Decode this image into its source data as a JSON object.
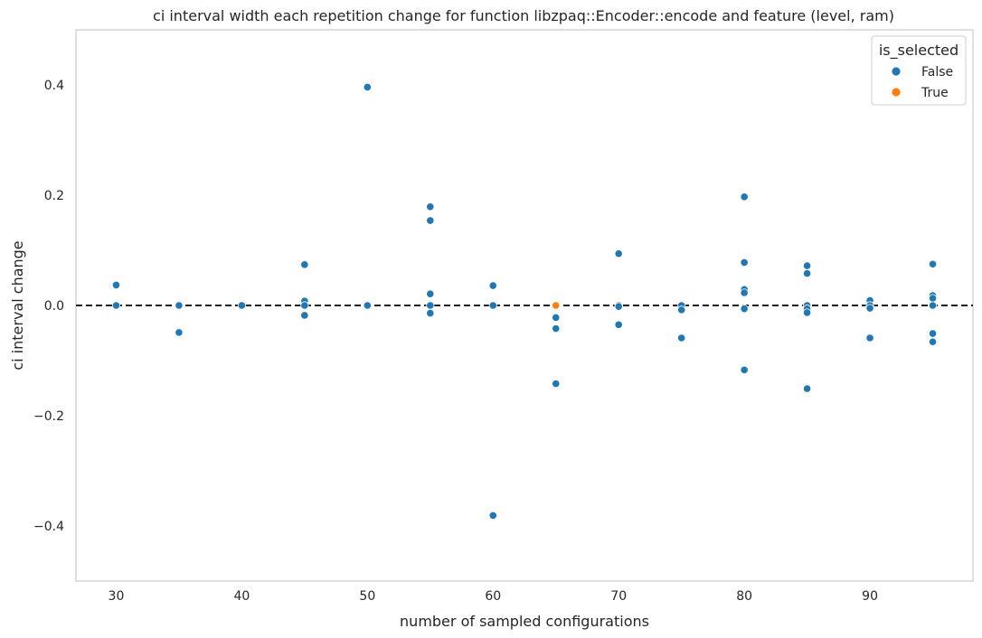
{
  "chart_data": {
    "type": "scatter",
    "title": "ci interval width each repetition change for function libzpaq::Encoder::encode and feature (level, ram)",
    "xlabel": "number of sampled configurations",
    "ylabel": "ci interval change",
    "xlim": [
      26.8,
      98.2
    ],
    "ylim": [
      -0.5,
      0.5
    ],
    "xticks": [
      30,
      40,
      50,
      60,
      70,
      80,
      90
    ],
    "yticks": [
      -0.4,
      -0.2,
      0.0,
      0.2,
      0.4
    ],
    "ytick_labels": [
      "−0.4",
      "−0.2",
      "0.0",
      "0.2",
      "0.4"
    ],
    "grid": false,
    "reference_line": {
      "y": 0.0,
      "style": "dashed",
      "color": "#000000"
    },
    "legend": {
      "title": "is_selected",
      "placement": "top-right",
      "entries": [
        {
          "label": "False",
          "color": "#1f77b4"
        },
        {
          "label": "True",
          "color": "#ff7f0e"
        }
      ]
    },
    "series": [
      {
        "name": "False",
        "color": "#1f77b4",
        "points": [
          [
            30,
            0.037
          ],
          [
            30,
            0.0
          ],
          [
            35,
            0.0
          ],
          [
            35,
            -0.049
          ],
          [
            40,
            0.0
          ],
          [
            45,
            0.074
          ],
          [
            45,
            0.008
          ],
          [
            45,
            0.0
          ],
          [
            45,
            -0.018
          ],
          [
            50,
            0.396
          ],
          [
            50,
            0.0
          ],
          [
            55,
            0.179
          ],
          [
            55,
            0.154
          ],
          [
            55,
            0.021
          ],
          [
            55,
            0.0
          ],
          [
            55,
            -0.014
          ],
          [
            60,
            0.036
          ],
          [
            60,
            0.0
          ],
          [
            60,
            -0.381
          ],
          [
            65,
            -0.022
          ],
          [
            65,
            -0.042
          ],
          [
            65,
            -0.142
          ],
          [
            70,
            0.094
          ],
          [
            70,
            0.0
          ],
          [
            70,
            -0.002
          ],
          [
            70,
            -0.035
          ],
          [
            75,
            0.0
          ],
          [
            75,
            -0.008
          ],
          [
            75,
            -0.059
          ],
          [
            80,
            0.197
          ],
          [
            80,
            0.078
          ],
          [
            80,
            0.029
          ],
          [
            80,
            0.023
          ],
          [
            80,
            -0.006
          ],
          [
            80,
            -0.117
          ],
          [
            85,
            0.072
          ],
          [
            85,
            0.058
          ],
          [
            85,
            0.0
          ],
          [
            85,
            -0.006
          ],
          [
            85,
            -0.013
          ],
          [
            85,
            -0.151
          ],
          [
            90,
            0.009
          ],
          [
            90,
            0.0
          ],
          [
            90,
            -0.005
          ],
          [
            90,
            -0.059
          ],
          [
            95,
            0.075
          ],
          [
            95,
            0.018
          ],
          [
            95,
            0.013
          ],
          [
            95,
            0.0
          ],
          [
            95,
            -0.051
          ],
          [
            95,
            -0.066
          ]
        ]
      },
      {
        "name": "True",
        "color": "#ff7f0e",
        "points": [
          [
            65,
            0.0
          ]
        ]
      }
    ]
  }
}
